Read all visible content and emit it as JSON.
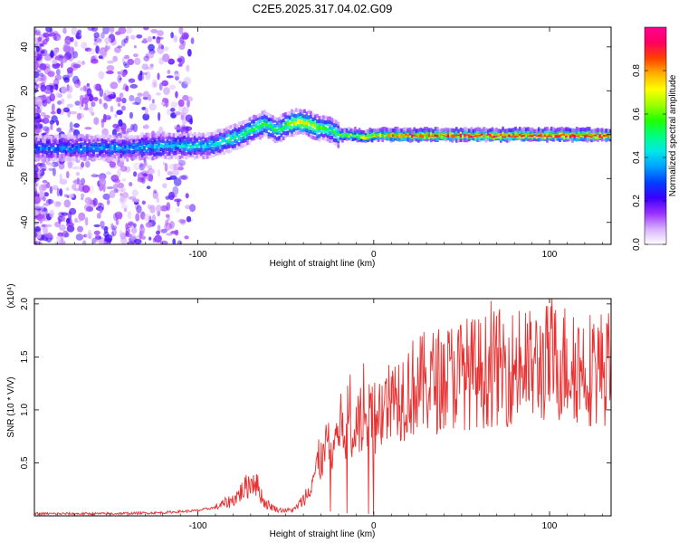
{
  "title": "C2E5.2025.317.04.02.G09",
  "chart_data": [
    {
      "type": "heatmap",
      "xlabel": "Height of straight line (km)",
      "ylabel": "Frequency (Hz)",
      "xlim": [
        -193,
        135
      ],
      "ylim": [
        -50,
        49
      ],
      "xticks": [
        -100,
        0,
        100
      ],
      "yticks": [
        -40,
        -20,
        0,
        20,
        40
      ],
      "colorbar": {
        "label": "Normalized spectral amplitude",
        "range": [
          0,
          1
        ],
        "ticks": [
          0.0,
          0.2,
          0.4,
          0.6,
          0.8
        ],
        "colors": [
          "#ffffff",
          "#d6b0ff",
          "#9b30ff",
          "#3a00ff",
          "#0040ff",
          "#00a0ff",
          "#00e8e8",
          "#00ff80",
          "#20ff00",
          "#a0ff00",
          "#ffff00",
          "#ffb000",
          "#ff4000",
          "#ff0060",
          "#ff0090"
        ]
      },
      "ridge": {
        "height_km": [
          -193,
          -160,
          -140,
          -120,
          -105,
          -95,
          -85,
          -75,
          -68,
          -62,
          -55,
          -48,
          -42,
          -37,
          -32,
          -28,
          -24,
          -20,
          -15,
          -10,
          -5,
          0,
          10,
          20,
          40,
          60,
          80,
          100,
          120,
          135
        ],
        "frequency_hz": [
          -6,
          -6,
          -6,
          -5,
          -5,
          -5,
          -3,
          0,
          3,
          5,
          2,
          5,
          6,
          5,
          3,
          3,
          2,
          0,
          0,
          0,
          -1,
          0,
          0,
          0,
          0,
          0,
          0,
          0,
          0,
          0
        ],
        "amplitude": [
          0.3,
          0.35,
          0.35,
          0.4,
          0.42,
          0.42,
          0.45,
          0.5,
          0.55,
          0.55,
          0.5,
          0.62,
          0.72,
          0.7,
          0.6,
          0.55,
          0.52,
          0.55,
          0.6,
          0.65,
          0.7,
          0.75,
          0.82,
          0.85,
          0.88,
          0.9,
          0.9,
          0.9,
          0.9,
          0.88
        ]
      }
    },
    {
      "type": "line",
      "xlabel": "Height of straight line (km)",
      "ylabel": "SNR (10 * V/V)",
      "y_multiplier": "(x10⁴)",
      "xlim": [
        -193,
        135
      ],
      "ylim": [
        0,
        2.05
      ],
      "xticks": [
        -100,
        0,
        100
      ],
      "yticks": [
        0.5,
        1.0,
        1.5,
        2.0
      ],
      "series": [
        {
          "name": "SNR",
          "color": "#e83030",
          "x": [
            -193,
            -150,
            -120,
            -100,
            -90,
            -80,
            -72,
            -68,
            -62,
            -55,
            -50,
            -45,
            -40,
            -35,
            -30,
            -25,
            -20,
            -15,
            -10,
            -5,
            0,
            10,
            20,
            30,
            40,
            50,
            60,
            70,
            80,
            90,
            100,
            110,
            120,
            135
          ],
          "y": [
            0.02,
            0.02,
            0.03,
            0.05,
            0.08,
            0.15,
            0.28,
            0.35,
            0.12,
            0.06,
            0.05,
            0.06,
            0.15,
            0.35,
            0.55,
            0.7,
            0.8,
            0.9,
            0.9,
            0.85,
            0.95,
            1.1,
            1.2,
            1.25,
            1.3,
            1.35,
            1.35,
            1.4,
            1.4,
            1.4,
            1.45,
            1.45,
            1.4,
            1.4
          ]
        }
      ]
    }
  ]
}
